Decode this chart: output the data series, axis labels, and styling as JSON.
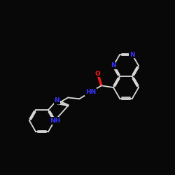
{
  "background": "#080808",
  "bc": "#d8d8d8",
  "nc": "#3333ff",
  "oc": "#ff1a1a",
  "fs": 6.5,
  "lw": 1.3,
  "xlim": [
    0,
    10
  ],
  "ylim": [
    0,
    10
  ]
}
